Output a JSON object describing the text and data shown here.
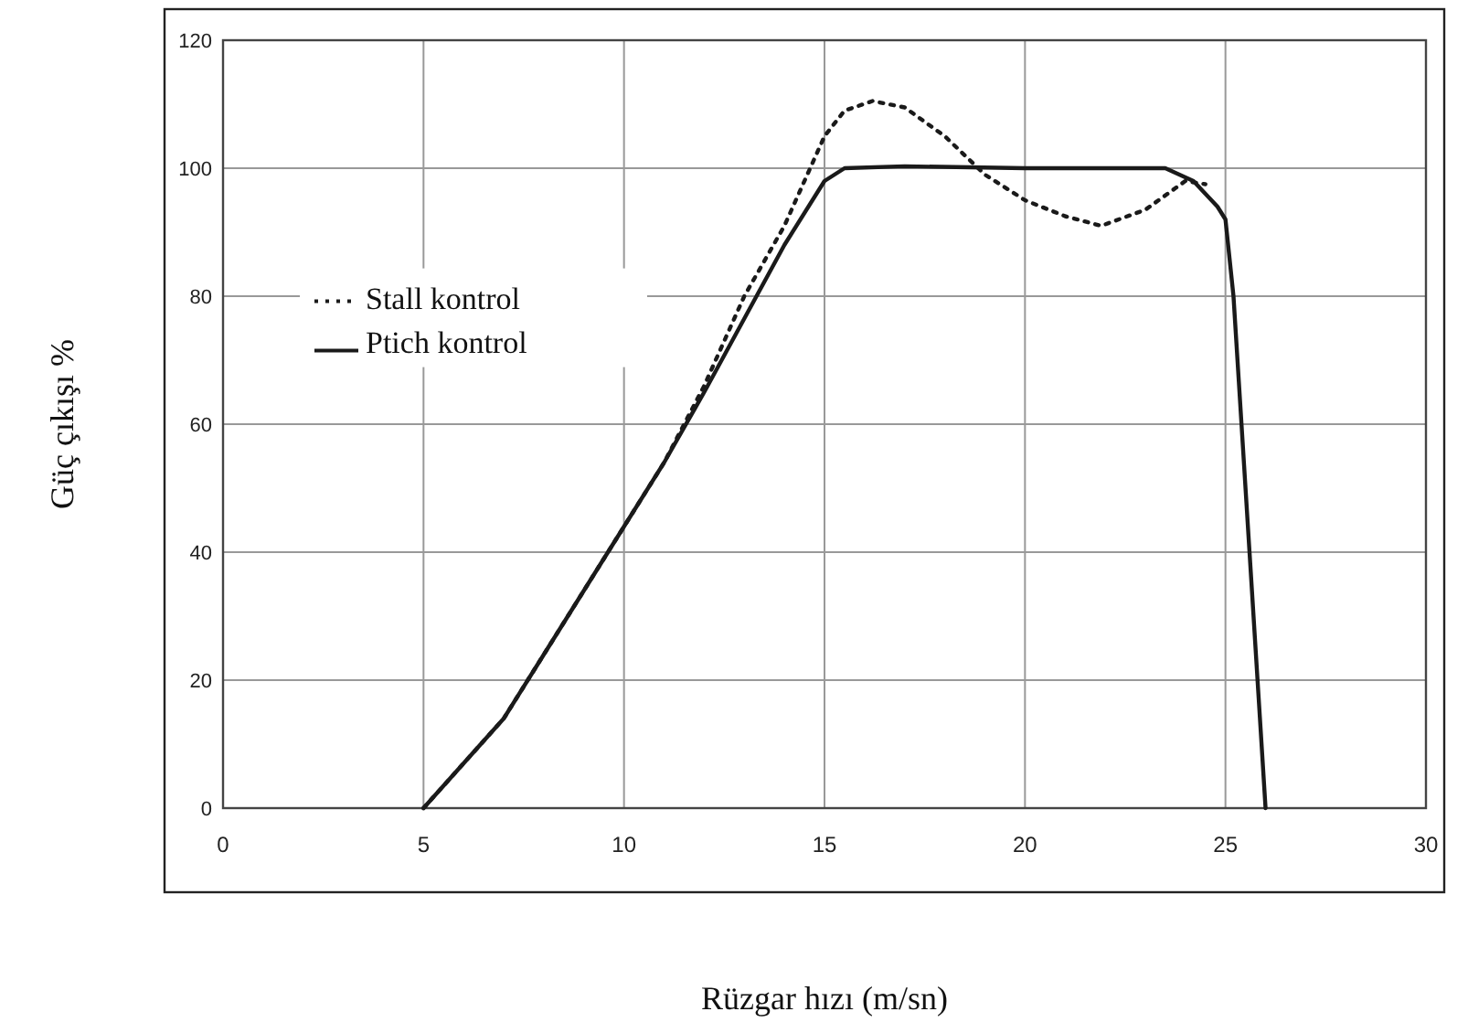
{
  "chart_data": {
    "type": "line",
    "xlabel": "Rüzgar hızı (m/sn)",
    "ylabel": "Güç çıkışı %",
    "xlim": [
      0,
      30
    ],
    "xticks": [
      0,
      5,
      10,
      15,
      20,
      25,
      30
    ],
    "ylim": [
      0,
      120
    ],
    "yticks": [
      0,
      20,
      40,
      60,
      80,
      100,
      120
    ],
    "grid": true,
    "legend": "left",
    "series": [
      {
        "name": "Stall kontrol",
        "color": "#1a1a1a",
        "line_style": "dotted",
        "x": [
          5,
          6,
          7,
          8,
          9,
          10,
          11,
          12,
          13,
          14,
          15,
          15.5,
          16.2,
          17,
          18,
          19,
          20,
          21,
          21.9,
          23,
          24,
          24.5
        ],
        "values": [
          0,
          7,
          14,
          24,
          34,
          44,
          54,
          66,
          80,
          91,
          105,
          109,
          110.5,
          109.5,
          105,
          99,
          95,
          92.5,
          91,
          93.5,
          98,
          97.5
        ]
      },
      {
        "name": "Ptich kontrol",
        "color": "#1a1a1a",
        "line_style": "solid",
        "x": [
          5,
          6,
          7,
          8,
          9,
          10,
          11,
          12,
          13,
          14,
          15,
          15.5,
          17,
          20,
          23.5,
          24.2,
          24.8,
          25,
          25.2,
          25.6,
          26
        ],
        "values": [
          0,
          7,
          14,
          24,
          34,
          44,
          54,
          65,
          76.5,
          88,
          98,
          100,
          100.3,
          100,
          100,
          98,
          94,
          92,
          80,
          40,
          0
        ]
      }
    ]
  }
}
